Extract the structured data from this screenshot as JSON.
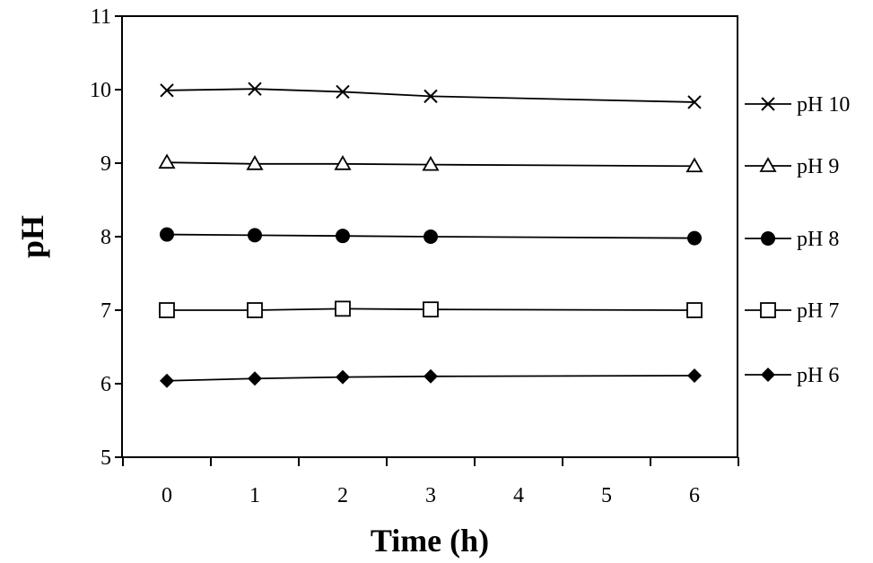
{
  "chart_data": {
    "type": "line",
    "xlabel": "Time (h)",
    "ylabel": "pH",
    "x_categories": [
      "0",
      "1",
      "2",
      "3",
      "4",
      "5",
      "6"
    ],
    "ylim": [
      5,
      11
    ],
    "yticks": [
      5,
      6,
      7,
      8,
      9,
      10,
      11
    ],
    "grid": false,
    "legend_position": "right",
    "series": [
      {
        "name": "pH 10",
        "marker": "x",
        "x": [
          0,
          1,
          2,
          3,
          6
        ],
        "values": [
          9.99,
          10.01,
          9.97,
          9.91,
          9.83
        ]
      },
      {
        "name": "pH 9",
        "marker": "triangle-open",
        "x": [
          0,
          1,
          2,
          3,
          6
        ],
        "values": [
          9.01,
          8.99,
          8.99,
          8.98,
          8.96
        ]
      },
      {
        "name": "pH 8",
        "marker": "circle-filled",
        "x": [
          0,
          1,
          2,
          3,
          6
        ],
        "values": [
          8.03,
          8.02,
          8.01,
          8.0,
          7.98
        ]
      },
      {
        "name": "pH 7",
        "marker": "square-open",
        "x": [
          0,
          1,
          2,
          3,
          6
        ],
        "values": [
          7.0,
          7.0,
          7.02,
          7.01,
          7.0
        ]
      },
      {
        "name": "pH 6",
        "marker": "diamond-filled",
        "x": [
          0,
          1,
          2,
          3,
          6
        ],
        "values": [
          6.04,
          6.07,
          6.09,
          6.1,
          6.11
        ]
      }
    ],
    "colors": {
      "line": "#000000",
      "background": "#ffffff"
    }
  }
}
